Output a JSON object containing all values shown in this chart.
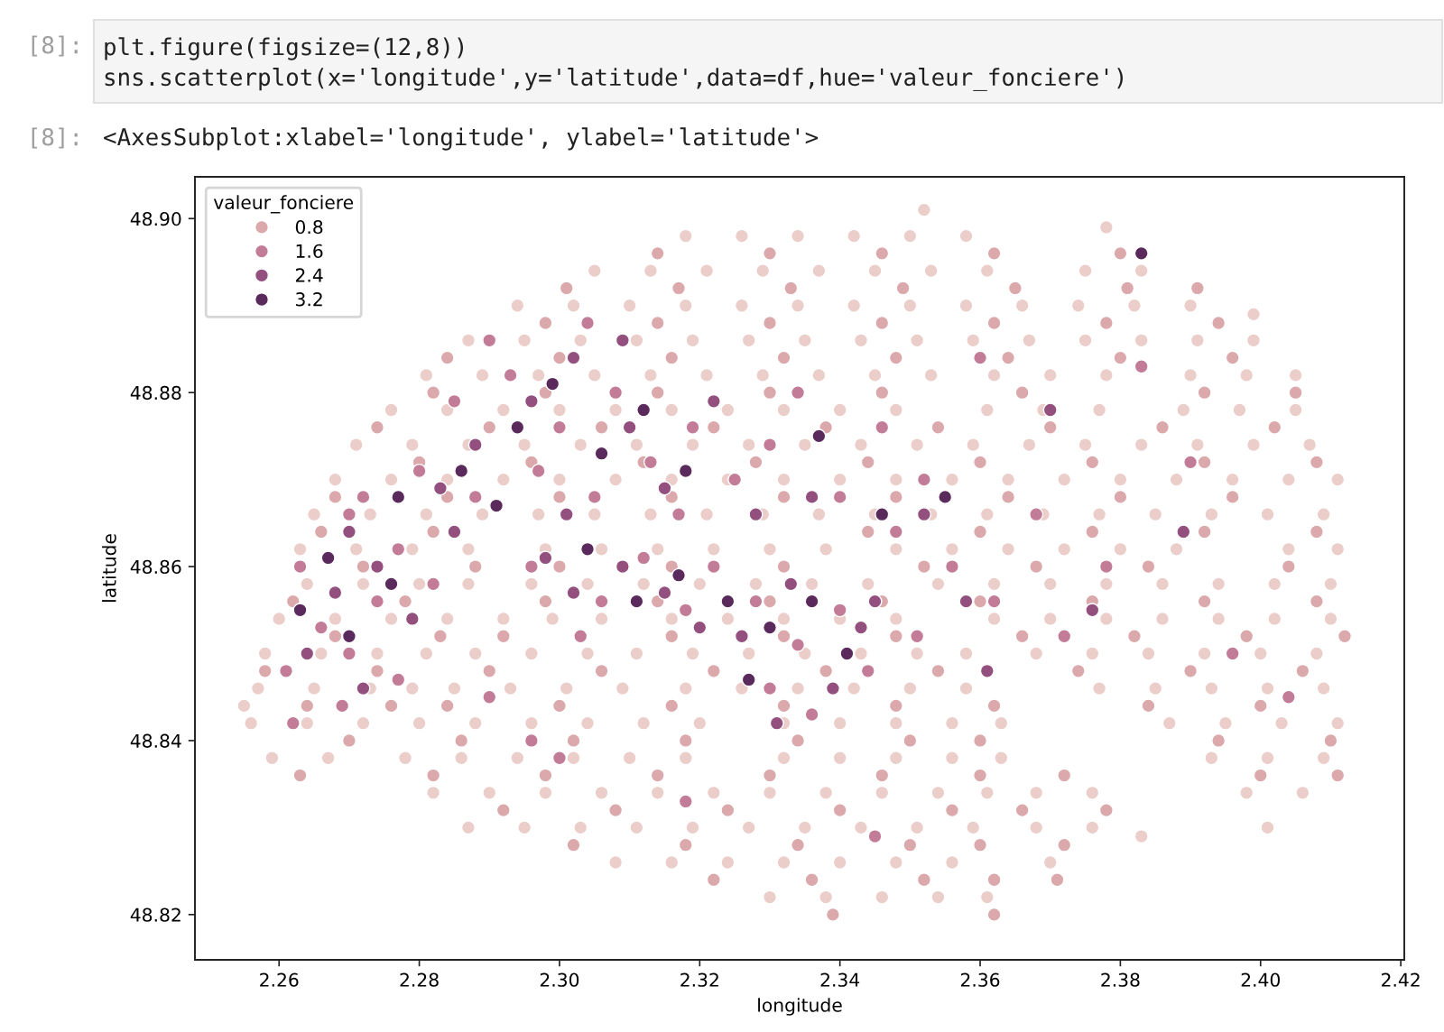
{
  "chart_data": {
    "type": "scatter",
    "xlabel": "longitude",
    "ylabel": "latitude",
    "legend_title": "valeur_fonciere",
    "legend": "top left",
    "grid": false,
    "marker": "circle",
    "xlim": [
      2.248,
      2.4205
    ],
    "ylim": [
      48.8148,
      48.9048
    ],
    "xticks": [
      2.26,
      2.28,
      {
        "value": 2.3,
        "label": "2.30"
      },
      2.32,
      2.34,
      2.36,
      2.38,
      {
        "value": 2.4,
        "label": "2.40"
      },
      2.42
    ],
    "yticks": [
      48.82,
      48.84,
      48.86,
      48.88,
      {
        "value": 48.9,
        "label": "48.90"
      }
    ],
    "annotations": [
      "[8]:",
      "plt.figure(figsize=(12,8))",
      "sns.scatterplot(x='longitude',y='latitude',data=df,hue='valeur_fonciere')",
      "[8]:",
      "<AxesSubplot:xlabel='longitude', ylabel='latitude'>"
    ],
    "series": [
      {
        "color": "#ebcdc9",
        "x": [
          2.318,
          2.326,
          2.334,
          2.342,
          2.35,
          2.358,
          2.305,
          2.313,
          2.321,
          2.329,
          2.337,
          2.345,
          2.353,
          2.361,
          2.375,
          2.383,
          2.294,
          2.302,
          2.31,
          2.318,
          2.326,
          2.334,
          2.342,
          2.35,
          2.358,
          2.366,
          2.374,
          2.382,
          2.39,
          2.287,
          2.295,
          2.303,
          2.311,
          2.319,
          2.327,
          2.335,
          2.343,
          2.351,
          2.359,
          2.367,
          2.375,
          2.383,
          2.391,
          2.399,
          2.281,
          2.289,
          2.297,
          2.305,
          2.313,
          2.321,
          2.329,
          2.337,
          2.345,
          2.353,
          2.362,
          2.37,
          2.378,
          2.39,
          2.398,
          2.405,
          2.276,
          2.284,
          2.292,
          2.3,
          2.308,
          2.316,
          2.324,
          2.332,
          2.34,
          2.348,
          2.361,
          2.369,
          2.377,
          2.389,
          2.397,
          2.405,
          2.271,
          2.279,
          2.287,
          2.295,
          2.303,
          2.311,
          2.319,
          2.327,
          2.335,
          2.343,
          2.351,
          2.359,
          2.367,
          2.375,
          2.383,
          2.391,
          2.399,
          2.407,
          2.268,
          2.276,
          2.284,
          2.292,
          2.3,
          2.308,
          2.316,
          2.324,
          2.332,
          2.34,
          2.348,
          2.356,
          2.364,
          2.372,
          2.38,
          2.388,
          2.396,
          2.404,
          2.411,
          2.265,
          2.273,
          2.281,
          2.289,
          2.297,
          2.305,
          2.313,
          2.321,
          2.329,
          2.337,
          2.345,
          2.353,
          2.361,
          2.369,
          2.377,
          2.385,
          2.393,
          2.401,
          2.409,
          2.263,
          2.271,
          2.279,
          2.287,
          2.298,
          2.306,
          2.314,
          2.322,
          2.33,
          2.338,
          2.348,
          2.356,
          2.364,
          2.372,
          2.38,
          2.388,
          2.404,
          2.411,
          2.264,
          2.272,
          2.28,
          2.287,
          2.296,
          2.304,
          2.312,
          2.32,
          2.328,
          2.336,
          2.344,
          2.354,
          2.362,
          2.37,
          2.378,
          2.386,
          2.394,
          2.402,
          2.41,
          2.26,
          2.268,
          2.276,
          2.284,
          2.292,
          2.299,
          2.306,
          2.316,
          2.324,
          2.332,
          2.34,
          2.348,
          2.362,
          2.37,
          2.378,
          2.386,
          2.394,
          2.402,
          2.41,
          2.258,
          2.266,
          2.274,
          2.281,
          2.288,
          2.296,
          2.304,
          2.311,
          2.319,
          2.327,
          2.335,
          2.343,
          2.351,
          2.358,
          2.368,
          2.376,
          2.384,
          2.392,
          2.4,
          2.408,
          2.257,
          2.265,
          2.273,
          2.279,
          2.285,
          2.293,
          2.301,
          2.309,
          2.318,
          2.326,
          2.334,
          2.342,
          2.35,
          2.358,
          2.377,
          2.385,
          2.393,
          2.401,
          2.409,
          2.256,
          2.264,
          2.272,
          2.28,
          2.288,
          2.296,
          2.304,
          2.312,
          2.32,
          2.332,
          2.34,
          2.348,
          2.356,
          2.363,
          2.387,
          2.395,
          2.403,
          2.411,
          2.259,
          2.267,
          2.278,
          2.286,
          2.294,
          2.302,
          2.31,
          2.318,
          2.332,
          2.34,
          2.348,
          2.356,
          2.363,
          2.393,
          2.401,
          2.409,
          2.282,
          2.29,
          2.298,
          2.306,
          2.314,
          2.322,
          2.33,
          2.338,
          2.346,
          2.354,
          2.361,
          2.368,
          2.376,
          2.398,
          2.406,
          2.287,
          2.295,
          2.303,
          2.311,
          2.319,
          2.327,
          2.335,
          2.343,
          2.351,
          2.359,
          2.368,
          2.376,
          2.308,
          2.316,
          2.324,
          2.332,
          2.34,
          2.348,
          2.356,
          2.37,
          2.33,
          2.338,
          2.346,
          2.354,
          2.361,
          2.352,
          2.378,
          2.399,
          2.401,
          2.383,
          2.255
        ],
        "values": [
          48.898,
          48.898,
          48.898,
          48.898,
          48.898,
          48.898,
          48.894,
          48.894,
          48.894,
          48.894,
          48.894,
          48.894,
          48.894,
          48.894,
          48.894,
          48.894,
          48.89,
          48.89,
          48.89,
          48.89,
          48.89,
          48.89,
          48.89,
          48.89,
          48.89,
          48.89,
          48.89,
          48.89,
          48.89,
          48.886,
          48.886,
          48.886,
          48.886,
          48.886,
          48.886,
          48.886,
          48.886,
          48.886,
          48.886,
          48.886,
          48.886,
          48.886,
          48.886,
          48.886,
          48.882,
          48.882,
          48.882,
          48.882,
          48.882,
          48.882,
          48.882,
          48.882,
          48.882,
          48.882,
          48.882,
          48.882,
          48.882,
          48.882,
          48.882,
          48.882,
          48.878,
          48.878,
          48.878,
          48.878,
          48.878,
          48.878,
          48.878,
          48.878,
          48.878,
          48.878,
          48.878,
          48.878,
          48.878,
          48.878,
          48.878,
          48.878,
          48.874,
          48.874,
          48.874,
          48.874,
          48.874,
          48.874,
          48.874,
          48.874,
          48.874,
          48.874,
          48.874,
          48.874,
          48.874,
          48.874,
          48.874,
          48.874,
          48.874,
          48.874,
          48.87,
          48.87,
          48.87,
          48.87,
          48.87,
          48.87,
          48.87,
          48.87,
          48.87,
          48.87,
          48.87,
          48.87,
          48.87,
          48.87,
          48.87,
          48.87,
          48.87,
          48.87,
          48.87,
          48.866,
          48.866,
          48.866,
          48.866,
          48.866,
          48.866,
          48.866,
          48.866,
          48.866,
          48.866,
          48.866,
          48.866,
          48.866,
          48.866,
          48.866,
          48.866,
          48.866,
          48.866,
          48.866,
          48.862,
          48.862,
          48.862,
          48.862,
          48.862,
          48.862,
          48.862,
          48.862,
          48.862,
          48.862,
          48.862,
          48.862,
          48.862,
          48.862,
          48.862,
          48.862,
          48.862,
          48.862,
          48.858,
          48.858,
          48.858,
          48.858,
          48.858,
          48.858,
          48.858,
          48.858,
          48.858,
          48.858,
          48.858,
          48.858,
          48.858,
          48.858,
          48.858,
          48.858,
          48.858,
          48.858,
          48.858,
          48.854,
          48.854,
          48.854,
          48.854,
          48.854,
          48.854,
          48.854,
          48.854,
          48.854,
          48.854,
          48.854,
          48.854,
          48.854,
          48.854,
          48.854,
          48.854,
          48.854,
          48.854,
          48.854,
          48.85,
          48.85,
          48.85,
          48.85,
          48.85,
          48.85,
          48.85,
          48.85,
          48.85,
          48.85,
          48.85,
          48.85,
          48.85,
          48.85,
          48.85,
          48.85,
          48.85,
          48.85,
          48.85,
          48.85,
          48.846,
          48.846,
          48.846,
          48.846,
          48.846,
          48.846,
          48.846,
          48.846,
          48.846,
          48.846,
          48.846,
          48.846,
          48.846,
          48.846,
          48.846,
          48.846,
          48.846,
          48.846,
          48.846,
          48.842,
          48.842,
          48.842,
          48.842,
          48.842,
          48.842,
          48.842,
          48.842,
          48.842,
          48.842,
          48.842,
          48.842,
          48.842,
          48.842,
          48.842,
          48.842,
          48.842,
          48.842,
          48.838,
          48.838,
          48.838,
          48.838,
          48.838,
          48.838,
          48.838,
          48.838,
          48.838,
          48.838,
          48.838,
          48.838,
          48.838,
          48.838,
          48.838,
          48.838,
          48.834,
          48.834,
          48.834,
          48.834,
          48.834,
          48.834,
          48.834,
          48.834,
          48.834,
          48.834,
          48.834,
          48.834,
          48.834,
          48.834,
          48.834,
          48.83,
          48.83,
          48.83,
          48.83,
          48.83,
          48.83,
          48.83,
          48.83,
          48.83,
          48.83,
          48.83,
          48.83,
          48.826,
          48.826,
          48.826,
          48.826,
          48.826,
          48.826,
          48.826,
          48.826,
          48.822,
          48.822,
          48.822,
          48.822,
          48.822,
          48.901,
          48.899,
          48.889,
          48.83,
          48.829,
          48.844
        ]
      },
      {
        "name": "0.8",
        "color": "#dba8ab",
        "x": [
          2.314,
          2.33,
          2.346,
          2.362,
          2.38,
          2.301,
          2.317,
          2.333,
          2.349,
          2.365,
          2.381,
          2.391,
          2.298,
          2.314,
          2.33,
          2.346,
          2.362,
          2.378,
          2.394,
          2.284,
          2.3,
          2.316,
          2.332,
          2.348,
          2.364,
          2.38,
          2.396,
          2.282,
          2.298,
          2.314,
          2.33,
          2.346,
          2.366,
          2.392,
          2.405,
          2.274,
          2.29,
          2.306,
          2.322,
          2.338,
          2.354,
          2.37,
          2.386,
          2.402,
          2.28,
          2.296,
          2.312,
          2.328,
          2.344,
          2.36,
          2.376,
          2.392,
          2.408,
          2.268,
          2.284,
          2.3,
          2.316,
          2.332,
          2.348,
          2.364,
          2.38,
          2.396,
          2.266,
          2.282,
          2.344,
          2.36,
          2.376,
          2.392,
          2.408,
          2.272,
          2.288,
          2.3,
          2.316,
          2.332,
          2.352,
          2.368,
          2.384,
          2.404,
          2.262,
          2.278,
          2.298,
          2.314,
          2.33,
          2.346,
          2.36,
          2.376,
          2.392,
          2.408,
          2.268,
          2.283,
          2.292,
          2.316,
          2.332,
          2.348,
          2.366,
          2.382,
          2.398,
          2.412,
          2.258,
          2.274,
          2.29,
          2.306,
          2.322,
          2.338,
          2.354,
          2.374,
          2.39,
          2.406,
          2.264,
          2.276,
          2.284,
          2.3,
          2.316,
          2.332,
          2.348,
          2.362,
          2.384,
          2.4,
          2.27,
          2.286,
          2.302,
          2.318,
          2.334,
          2.35,
          2.36,
          2.394,
          2.41,
          2.263,
          2.282,
          2.298,
          2.314,
          2.33,
          2.346,
          2.36,
          2.372,
          2.4,
          2.411,
          2.292,
          2.308,
          2.324,
          2.34,
          2.356,
          2.366,
          2.378,
          2.302,
          2.318,
          2.334,
          2.35,
          2.36,
          2.372,
          2.322,
          2.336,
          2.352,
          2.362,
          2.371,
          2.339,
          2.362
        ],
        "values": [
          48.896,
          48.896,
          48.896,
          48.896,
          48.896,
          48.892,
          48.892,
          48.892,
          48.892,
          48.892,
          48.892,
          48.892,
          48.888,
          48.888,
          48.888,
          48.888,
          48.888,
          48.888,
          48.888,
          48.884,
          48.884,
          48.884,
          48.884,
          48.884,
          48.884,
          48.884,
          48.884,
          48.88,
          48.88,
          48.88,
          48.88,
          48.88,
          48.88,
          48.88,
          48.88,
          48.876,
          48.876,
          48.876,
          48.876,
          48.876,
          48.876,
          48.876,
          48.876,
          48.876,
          48.872,
          48.872,
          48.872,
          48.872,
          48.872,
          48.872,
          48.872,
          48.872,
          48.872,
          48.868,
          48.868,
          48.868,
          48.868,
          48.868,
          48.868,
          48.868,
          48.868,
          48.868,
          48.864,
          48.864,
          48.864,
          48.864,
          48.864,
          48.864,
          48.864,
          48.86,
          48.86,
          48.86,
          48.86,
          48.86,
          48.86,
          48.86,
          48.86,
          48.86,
          48.856,
          48.856,
          48.856,
          48.856,
          48.856,
          48.856,
          48.856,
          48.856,
          48.856,
          48.856,
          48.852,
          48.852,
          48.852,
          48.852,
          48.852,
          48.852,
          48.852,
          48.852,
          48.852,
          48.852,
          48.848,
          48.848,
          48.848,
          48.848,
          48.848,
          48.848,
          48.848,
          48.848,
          48.848,
          48.848,
          48.844,
          48.844,
          48.844,
          48.844,
          48.844,
          48.844,
          48.844,
          48.844,
          48.844,
          48.844,
          48.84,
          48.84,
          48.84,
          48.84,
          48.84,
          48.84,
          48.84,
          48.84,
          48.84,
          48.836,
          48.836,
          48.836,
          48.836,
          48.836,
          48.836,
          48.836,
          48.836,
          48.836,
          48.836,
          48.832,
          48.832,
          48.832,
          48.832,
          48.832,
          48.832,
          48.832,
          48.828,
          48.828,
          48.828,
          48.828,
          48.828,
          48.828,
          48.824,
          48.824,
          48.824,
          48.824,
          48.824,
          48.82,
          48.82
        ]
      },
      {
        "name": "1.6",
        "color": "#c27c97",
        "x": [
          2.263,
          2.27,
          2.277,
          2.266,
          2.274,
          2.282,
          2.261,
          2.27,
          2.277,
          2.262,
          2.269,
          2.272,
          2.28,
          2.288,
          2.285,
          2.293,
          2.3,
          2.308,
          2.297,
          2.305,
          2.313,
          2.319,
          2.317,
          2.325,
          2.29,
          2.304,
          2.33,
          2.334,
          2.296,
          2.306,
          2.312,
          2.318,
          2.303,
          2.322,
          2.328,
          2.334,
          2.34,
          2.33,
          2.344,
          2.336,
          2.351,
          2.34,
          2.348,
          2.356,
          2.352,
          2.362,
          2.346,
          2.368,
          2.378,
          2.39,
          2.36,
          2.372,
          2.396,
          2.3,
          2.318,
          2.345,
          2.383,
          2.404,
          2.29,
          2.296
        ],
        "values": [
          48.86,
          48.866,
          48.862,
          48.853,
          48.856,
          48.858,
          48.848,
          48.85,
          48.847,
          48.842,
          48.844,
          48.868,
          48.871,
          48.868,
          48.879,
          48.882,
          48.876,
          48.88,
          48.871,
          48.868,
          48.872,
          48.876,
          48.866,
          48.87,
          48.886,
          48.888,
          48.874,
          48.88,
          48.86,
          48.856,
          48.861,
          48.855,
          48.852,
          48.86,
          48.856,
          48.851,
          48.855,
          48.846,
          48.848,
          48.843,
          48.852,
          48.868,
          48.864,
          48.86,
          48.87,
          48.856,
          48.876,
          48.866,
          48.86,
          48.872,
          48.884,
          48.852,
          48.85,
          48.838,
          48.833,
          48.829,
          48.883,
          48.845,
          48.845,
          48.84
        ]
      },
      {
        "name": "2.4",
        "color": "#93507f",
        "x": [
          2.27,
          2.274,
          2.268,
          2.279,
          2.264,
          2.272,
          2.285,
          2.288,
          2.296,
          2.302,
          2.31,
          2.301,
          2.315,
          2.322,
          2.309,
          2.283,
          2.328,
          2.302,
          2.309,
          2.315,
          2.32,
          2.298,
          2.326,
          2.333,
          2.339,
          2.343,
          2.331,
          2.345,
          2.336,
          2.352,
          2.358,
          2.37,
          2.376,
          2.361,
          2.389
        ],
        "values": [
          48.864,
          48.86,
          48.857,
          48.854,
          48.85,
          48.846,
          48.864,
          48.874,
          48.879,
          48.884,
          48.876,
          48.866,
          48.869,
          48.879,
          48.886,
          48.869,
          48.866,
          48.857,
          48.86,
          48.857,
          48.853,
          48.861,
          48.852,
          48.858,
          48.846,
          48.853,
          48.842,
          48.856,
          48.868,
          48.866,
          48.856,
          48.878,
          48.855,
          48.848,
          48.864
        ]
      },
      {
        "name": "3.2",
        "color": "#5a2a5c",
        "x": [
          2.267,
          2.276,
          2.27,
          2.277,
          2.286,
          2.294,
          2.299,
          2.306,
          2.312,
          2.318,
          2.291,
          2.304,
          2.311,
          2.317,
          2.324,
          2.33,
          2.336,
          2.341,
          2.327,
          2.346,
          2.383,
          2.355,
          2.337,
          2.263
        ],
        "values": [
          48.861,
          48.858,
          48.852,
          48.868,
          48.871,
          48.876,
          48.881,
          48.873,
          48.878,
          48.871,
          48.867,
          48.862,
          48.856,
          48.859,
          48.856,
          48.853,
          48.856,
          48.85,
          48.847,
          48.866,
          48.896,
          48.868,
          48.875,
          48.855
        ]
      }
    ]
  }
}
